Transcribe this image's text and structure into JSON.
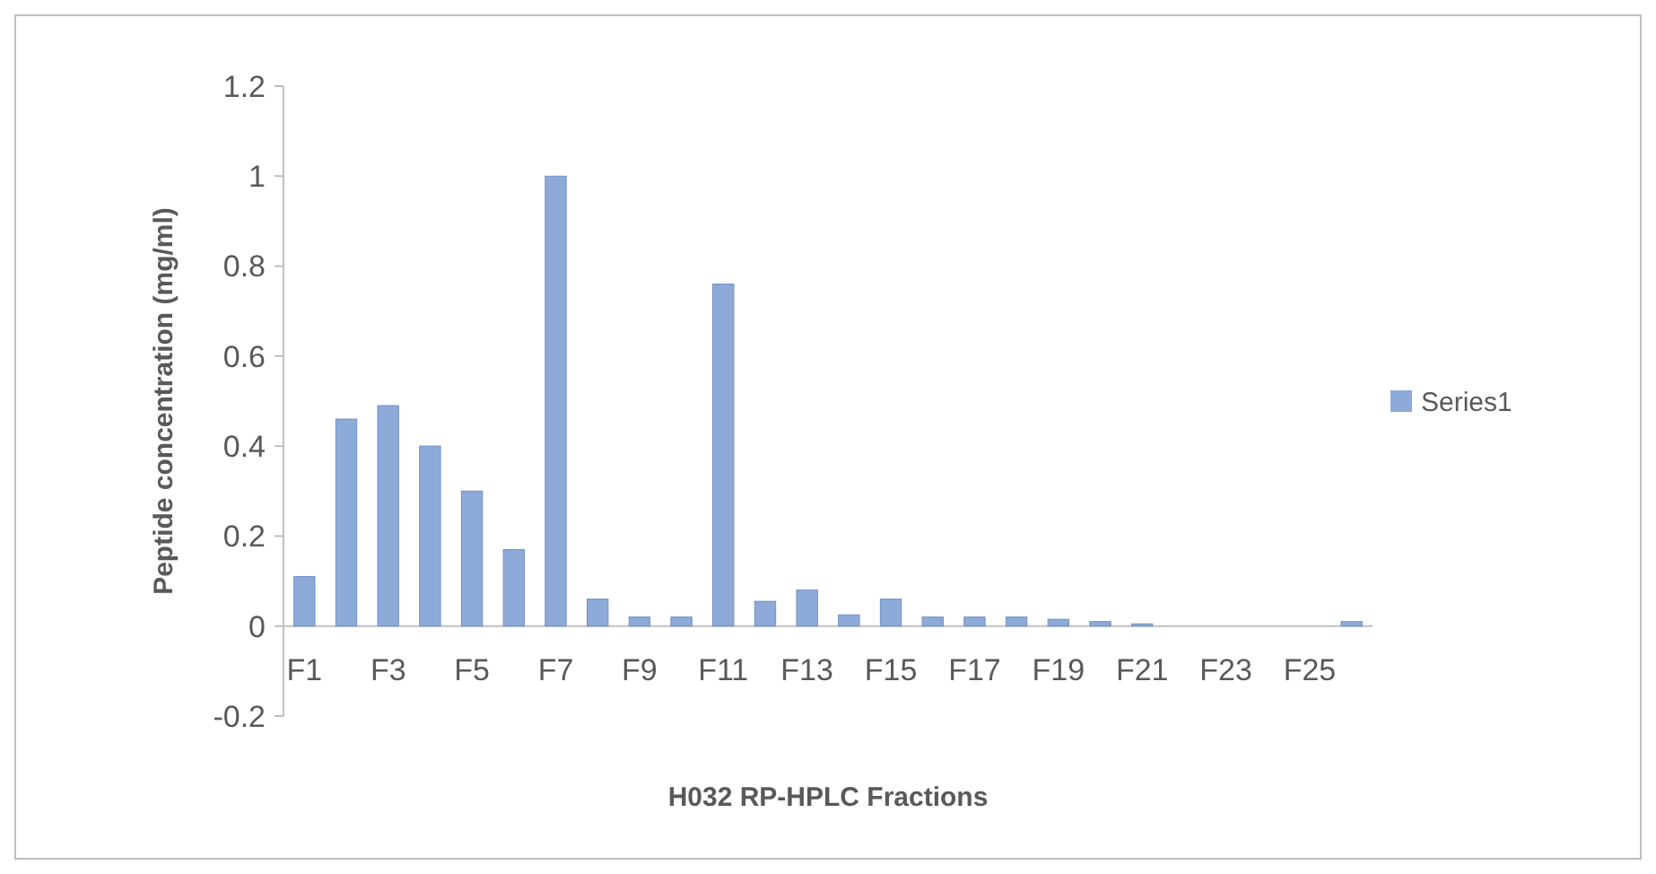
{
  "chart_data": {
    "type": "bar",
    "xlabel": "H032 RP-HPLC Fractions",
    "ylabel": "Peptide concentration (mg/ml)",
    "categories": [
      "F1",
      null,
      "F3",
      null,
      "F5",
      null,
      "F7",
      null,
      "F9",
      null,
      "F11",
      null,
      "F13",
      null,
      "F15",
      null,
      "F17",
      null,
      "F19",
      null,
      "F21",
      null,
      "F23",
      null,
      "F25",
      null
    ],
    "series": [
      {
        "name": "Series1",
        "color": "#8eaad8",
        "values": [
          0.11,
          0.46,
          0.49,
          0.4,
          0.3,
          0.17,
          1.0,
          0.06,
          0.02,
          0.02,
          0.76,
          0.055,
          0.08,
          0.025,
          0.06,
          0.02,
          0.02,
          0.02,
          0.015,
          0.01,
          0.005,
          0,
          0,
          0,
          0,
          0.01
        ]
      }
    ],
    "ylim": [
      -0.2,
      1.2
    ],
    "yticks": [
      -0.2,
      0,
      0.2,
      0.4,
      0.6,
      0.8,
      1,
      1.2
    ],
    "legend": "right"
  }
}
